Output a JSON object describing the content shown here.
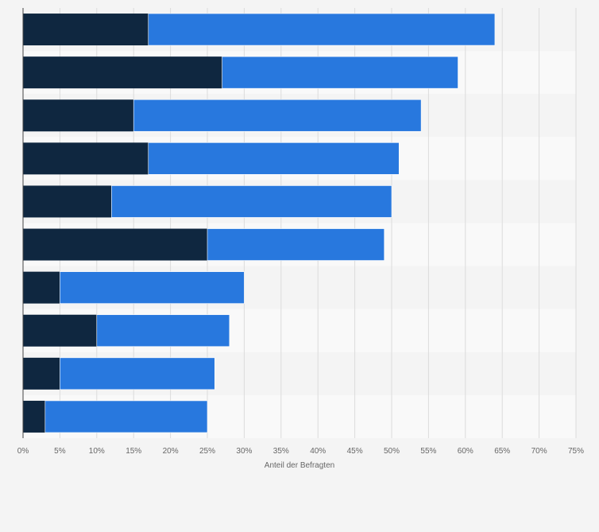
{
  "chart_data": {
    "type": "bar",
    "orientation": "horizontal",
    "stacked": true,
    "title": "",
    "xlabel": "Anteil der Befragten",
    "ylabel": "",
    "xlim": [
      0,
      75
    ],
    "x_ticks": [
      "0%",
      "5%",
      "10%",
      "15%",
      "20%",
      "25%",
      "30%",
      "35%",
      "40%",
      "45%",
      "50%",
      "55%",
      "60%",
      "65%",
      "70%",
      "75%"
    ],
    "grid": true,
    "legend": "none",
    "categories": [
      "",
      "",
      "",
      "",
      "",
      "",
      "",
      "",
      "",
      ""
    ],
    "series": [
      {
        "color": "#0f2740",
        "values": [
          17,
          27,
          15,
          17,
          12,
          25,
          5,
          10,
          5,
          3
        ]
      },
      {
        "color": "#2878de",
        "values": [
          47,
          32,
          39,
          34,
          38,
          24,
          25,
          18,
          21,
          22
        ]
      }
    ]
  }
}
